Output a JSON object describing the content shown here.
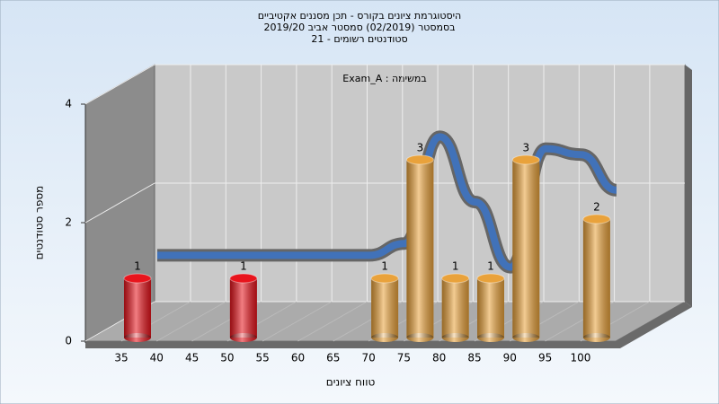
{
  "chart_data": {
    "type": "bar",
    "title": [
      "היסטוגרמת ציונים בקורס - תכן מסננים אקטיביים",
      "בסמסטר (02/2019) סמסטר אביב 2019/20",
      "סטודנטים רשומים - 21"
    ],
    "annotation": "במשימה : Exam_A",
    "x_label": "טווח ציונים",
    "y_label": "מספר סטודנטים",
    "categories": [
      "35",
      "40",
      "45",
      "50",
      "55",
      "60",
      "65",
      "70",
      "75",
      "80",
      "85",
      "90",
      "95",
      "100"
    ],
    "values": [
      1,
      null,
      null,
      1,
      null,
      null,
      null,
      1,
      3,
      1,
      1,
      3,
      null,
      2
    ],
    "colors": [
      "#e8141c",
      null,
      null,
      "#e8141c",
      null,
      null,
      null,
      "#e9a23b",
      "#e9a23b",
      "#e9a23b",
      "#e9a23b",
      "#e9a23b",
      null,
      "#e9a23b"
    ],
    "trend": {
      "color": "#3b74c8",
      "values": [
        1.1,
        1.1,
        1.1,
        1.1,
        1.1,
        1.1,
        1.1,
        1.3,
        3.1,
        2.0,
        0.9,
        2.9,
        2.8,
        2.2
      ]
    },
    "ylim": [
      0,
      4
    ],
    "yticks": [
      0,
      2,
      4
    ],
    "grid": true
  }
}
